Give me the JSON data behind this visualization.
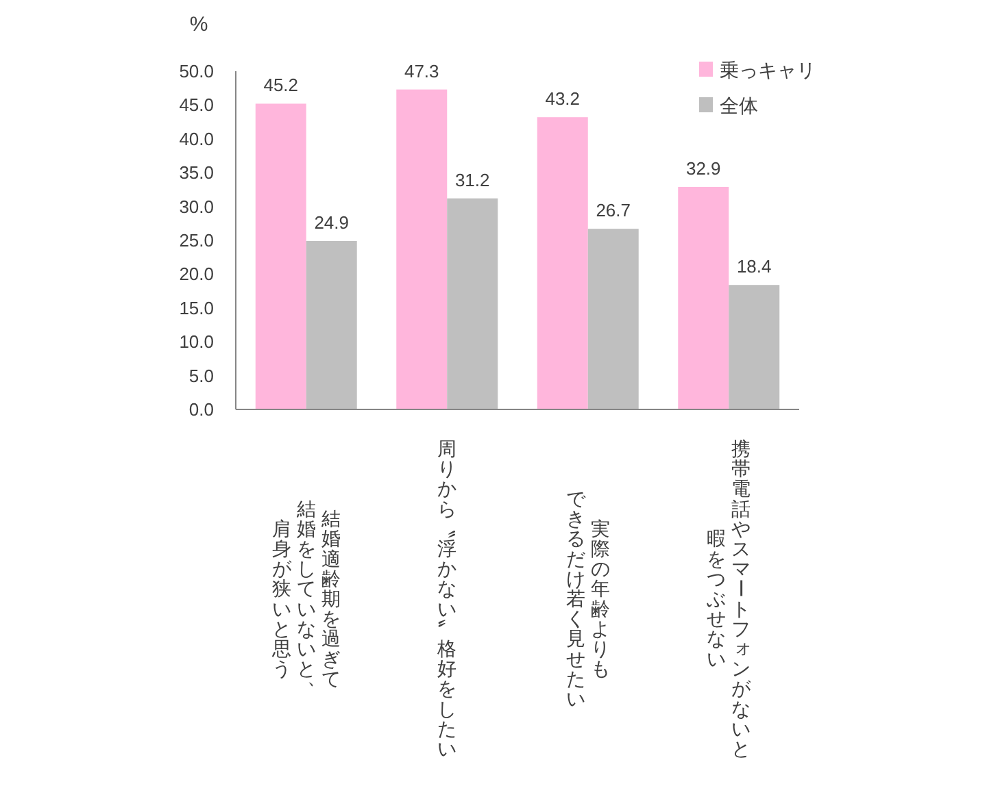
{
  "chart_data": {
    "type": "bar",
    "ylabel": "%",
    "categories": [
      "結婚適齢期を過ぎて結婚をしていないと、肩身が狭いと思う",
      "周りから〝浮かない〟格好をしたい",
      "実際の年齢よりもできるだけ若く見せたい",
      "携帯電話やスマートフォンがないと暇をつぶせない"
    ],
    "series": [
      {
        "name": "乗っキャリ",
        "color": "#ffb6dc",
        "values": [
          45.2,
          47.3,
          43.2,
          32.9
        ]
      },
      {
        "name": "全体",
        "color": "#bfbfbf",
        "values": [
          24.9,
          31.2,
          26.7,
          18.4
        ]
      }
    ],
    "ylim": [
      0,
      50
    ],
    "yticks": [
      {
        "value": 0,
        "label": "0.0"
      },
      {
        "value": 5,
        "label": "5.0"
      },
      {
        "value": 10,
        "label": "10.0"
      },
      {
        "value": 15,
        "label": "15.0"
      },
      {
        "value": 20,
        "label": "20.0"
      },
      {
        "value": 25,
        "label": "25.0"
      },
      {
        "value": 30,
        "label": "30.0"
      },
      {
        "value": 35,
        "label": "35.0"
      },
      {
        "value": 40,
        "label": "40.0"
      },
      {
        "value": 45,
        "label": "45.0"
      },
      {
        "value": 50,
        "label": "50.0"
      }
    ],
    "data_labels": true,
    "legend": "top right"
  }
}
